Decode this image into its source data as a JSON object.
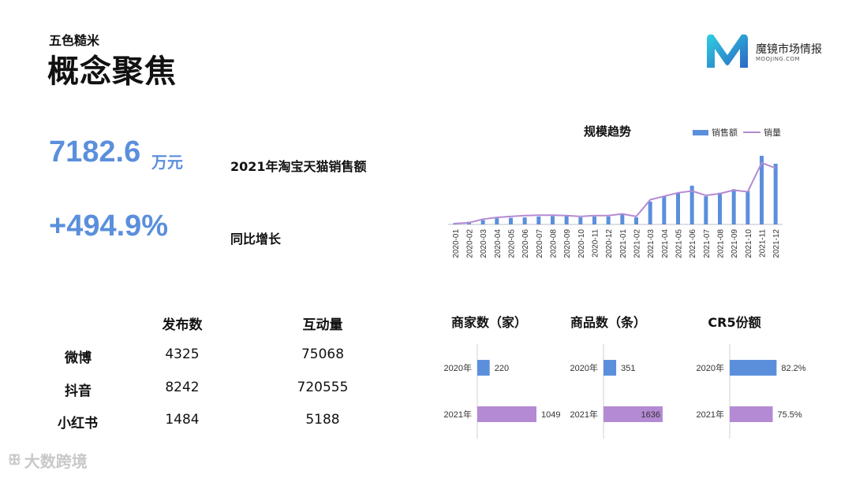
{
  "header": {
    "subtitle": "五色糙米",
    "title": "概念聚焦"
  },
  "logo": {
    "name": "魔镜市场情报",
    "sub": "MOOJING.COM",
    "colors": [
      "#2fb0d8",
      "#2b66c4"
    ]
  },
  "kpis": {
    "sales_value": "7182.6",
    "sales_unit": "万元",
    "sales_desc": "2021年淘宝天猫销售额",
    "growth_value": "+494.9%",
    "growth_desc": "同比增长"
  },
  "social_table": {
    "headers": [
      "发布数",
      "互动量"
    ],
    "rows": [
      {
        "platform": "微博",
        "posts": "4325",
        "interactions": "75068"
      },
      {
        "platform": "抖音",
        "posts": "8242",
        "interactions": "720555"
      },
      {
        "platform": "小红书",
        "posts": "1484",
        "interactions": "5188"
      }
    ]
  },
  "watermark": {
    "icon": "ꕥ",
    "text": "大数跨境"
  },
  "colors": {
    "accent": "#5b8fdc",
    "purple": "#b48ad4"
  },
  "chart_data": [
    {
      "type": "bar",
      "title": "规模趋势",
      "legend": "top-right",
      "categories": [
        "2020-01",
        "2020-02",
        "2020-03",
        "2020-04",
        "2020-05",
        "2020-06",
        "2020-07",
        "2020-08",
        "2020-09",
        "2020-10",
        "2020-11",
        "2020-12",
        "2021-01",
        "2021-02",
        "2021-03",
        "2021-04",
        "2021-05",
        "2021-06",
        "2021-07",
        "2021-08",
        "2021-09",
        "2021-10",
        "2021-11",
        "2021-12"
      ],
      "series": [
        {
          "name": "销售额",
          "type": "bar",
          "color": "#5b8fdc",
          "values": [
            1.5,
            3,
            5,
            7,
            7.5,
            8,
            9,
            9.5,
            9.5,
            8,
            9,
            9,
            12,
            8,
            26,
            32,
            36,
            44,
            32,
            36,
            40,
            38,
            78,
            69
          ]
        },
        {
          "name": "销量",
          "type": "line",
          "color": "#b48ad4",
          "values": [
            1,
            2,
            6,
            8,
            9,
            10,
            10.5,
            10.5,
            10,
            9,
            10,
            10,
            12,
            9,
            28,
            32,
            36,
            38,
            33,
            35,
            39,
            37,
            70,
            64
          ]
        }
      ],
      "ylim": [
        0,
        85
      ]
    },
    {
      "type": "bar",
      "title": "商家数（家）",
      "categories": [
        "2020年",
        "2021年"
      ],
      "values": [
        220,
        1049
      ],
      "labels": [
        "220",
        "1049"
      ],
      "colors": [
        "#5b8fdc",
        "#b48ad4"
      ]
    },
    {
      "type": "bar",
      "title": "商品数（条）",
      "categories": [
        "2020年",
        "2021年"
      ],
      "values": [
        351,
        1636
      ],
      "labels": [
        "351",
        "1636"
      ],
      "colors": [
        "#5b8fdc",
        "#b48ad4"
      ]
    },
    {
      "type": "bar",
      "title": "CR5份额",
      "categories": [
        "2020年",
        "2021年"
      ],
      "values": [
        82.2,
        75.5
      ],
      "labels": [
        "82.2%",
        "75.5%"
      ],
      "colors": [
        "#5b8fdc",
        "#b48ad4"
      ]
    }
  ]
}
